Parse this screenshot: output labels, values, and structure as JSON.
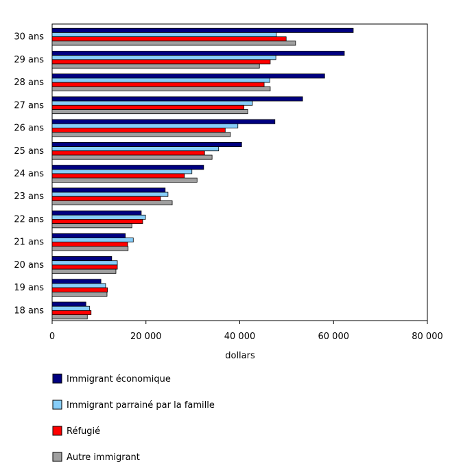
{
  "chart_data": {
    "type": "bar",
    "orientation": "horizontal",
    "title": "",
    "xlabel": "dollars",
    "ylabel": "",
    "xlim": [
      0,
      80000
    ],
    "xticks": [
      0,
      20000,
      40000,
      60000,
      80000
    ],
    "xtick_labels": [
      "0",
      "20 000",
      "40 000",
      "60 000",
      "80 000"
    ],
    "grid": false,
    "legend_position": "bottom",
    "categories": [
      "30 ans",
      "29 ans",
      "28 ans",
      "27 ans",
      "26 ans",
      "25 ans",
      "24 ans",
      "23 ans",
      "22 ans",
      "21 ans",
      "20 ans",
      "19 ans",
      "18 ans"
    ],
    "series": [
      {
        "name": "Immigrant économique",
        "color": "#000080",
        "values": [
          64200,
          62300,
          58100,
          53400,
          47500,
          40400,
          32300,
          24100,
          19000,
          15600,
          12700,
          10400,
          7200
        ]
      },
      {
        "name": "Immigrant parrainé par la famille",
        "color": "#87CEFA",
        "values": [
          47800,
          47700,
          46400,
          42700,
          39600,
          35500,
          29800,
          24700,
          19900,
          17300,
          13900,
          11400,
          8000
        ]
      },
      {
        "name": "Réfugié",
        "color": "#FF0000",
        "values": [
          49900,
          46500,
          45200,
          40900,
          36900,
          32500,
          28200,
          23100,
          19300,
          16100,
          13900,
          11800,
          8300
        ]
      },
      {
        "name": "Autre immigrant",
        "color": "#A0A0A0",
        "values": [
          51900,
          44200,
          46500,
          41700,
          38000,
          34100,
          30900,
          25600,
          17000,
          16200,
          13600,
          11700,
          7500
        ]
      }
    ]
  }
}
